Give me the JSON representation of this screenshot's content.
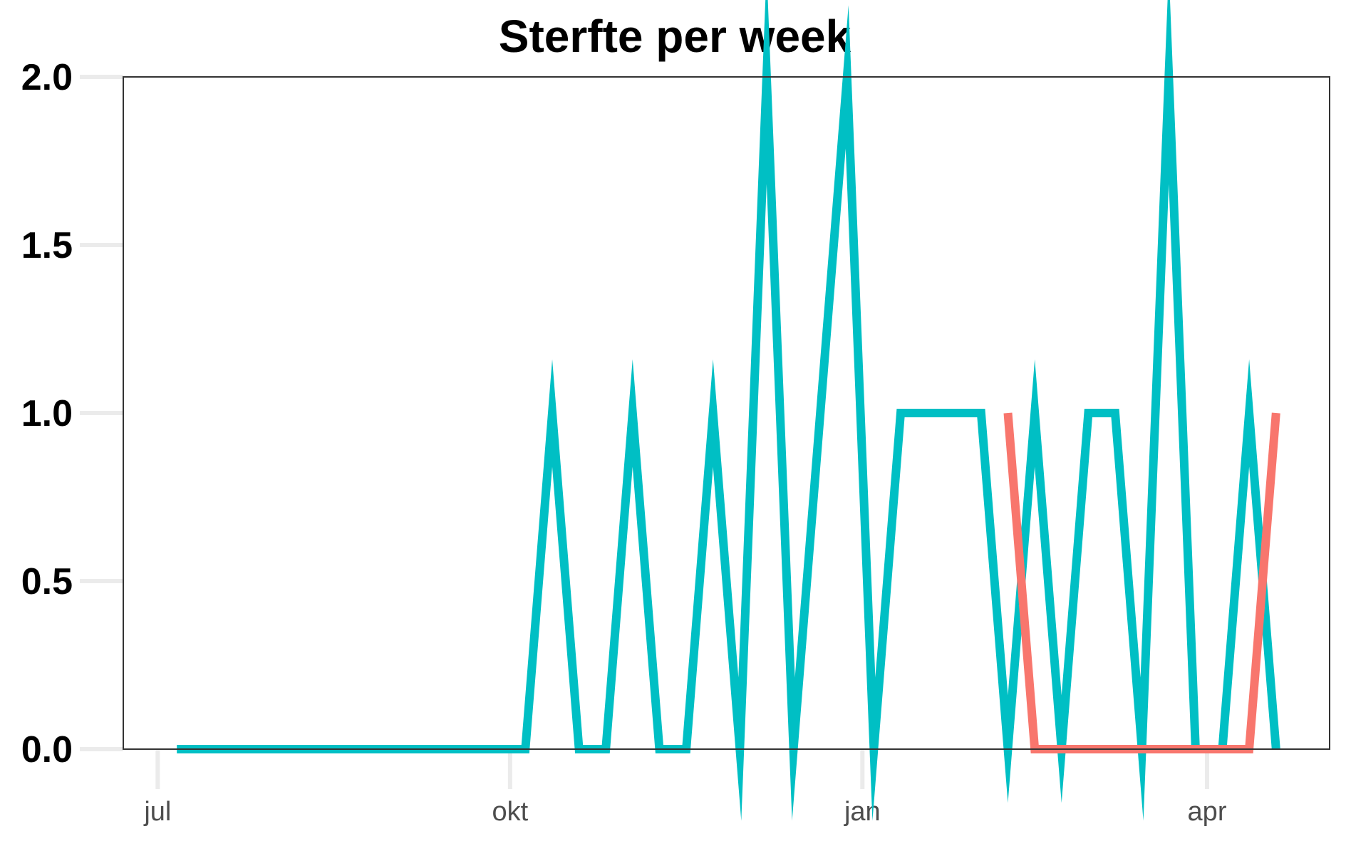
{
  "chart_data": {
    "type": "line",
    "title": "Sterfte per week",
    "xlabel": "",
    "ylabel": "",
    "ylim": [
      0,
      2
    ],
    "xlim": [
      "2020-06-22",
      "2021-05-03"
    ],
    "y_ticks": [
      "0.0",
      "0.5",
      "1.0",
      "1.5",
      "2.0"
    ],
    "x_ticks": [
      {
        "label": "jul",
        "date": "2020-07-01"
      },
      {
        "label": "okt",
        "date": "2020-10-01"
      },
      {
        "label": "jan",
        "date": "2021-01-01"
      },
      {
        "label": "apr",
        "date": "2021-04-01"
      }
    ],
    "grid": false,
    "legend": "none",
    "series": [
      {
        "color": "#00BFC4",
        "points": [
          [
            "2020-07-06",
            0
          ],
          [
            "2020-07-13",
            0
          ],
          [
            "2020-07-20",
            0
          ],
          [
            "2020-07-27",
            0
          ],
          [
            "2020-08-03",
            0
          ],
          [
            "2020-08-10",
            0
          ],
          [
            "2020-08-17",
            0
          ],
          [
            "2020-08-24",
            0
          ],
          [
            "2020-08-31",
            0
          ],
          [
            "2020-09-07",
            0
          ],
          [
            "2020-09-14",
            0
          ],
          [
            "2020-09-21",
            0
          ],
          [
            "2020-09-28",
            0
          ],
          [
            "2020-10-05",
            0
          ],
          [
            "2020-10-12",
            1
          ],
          [
            "2020-10-19",
            0
          ],
          [
            "2020-10-26",
            0
          ],
          [
            "2020-11-02",
            1
          ],
          [
            "2020-11-09",
            0
          ],
          [
            "2020-11-16",
            0
          ],
          [
            "2020-11-23",
            1
          ],
          [
            "2020-11-30",
            0
          ],
          [
            "2020-12-07",
            2
          ],
          [
            "2020-12-14",
            0
          ],
          [
            "2020-12-21",
            1
          ],
          [
            "2020-12-28",
            2
          ],
          [
            "2021-01-04",
            0
          ],
          [
            "2021-01-11",
            1
          ],
          [
            "2021-01-18",
            1
          ],
          [
            "2021-01-25",
            1
          ],
          [
            "2021-02-01",
            1
          ],
          [
            "2021-02-08",
            0
          ],
          [
            "2021-02-15",
            1
          ],
          [
            "2021-02-22",
            0
          ],
          [
            "2021-03-01",
            1
          ],
          [
            "2021-03-08",
            1
          ],
          [
            "2021-03-15",
            0
          ],
          [
            "2021-03-22",
            2
          ],
          [
            "2021-03-29",
            0
          ],
          [
            "2021-04-05",
            0
          ],
          [
            "2021-04-12",
            1
          ],
          [
            "2021-04-19",
            0
          ]
        ]
      },
      {
        "color": "#F8766D",
        "points": [
          [
            "2021-02-08",
            1
          ],
          [
            "2021-02-15",
            0
          ],
          [
            "2021-02-22",
            0
          ],
          [
            "2021-03-01",
            0
          ],
          [
            "2021-03-08",
            0
          ],
          [
            "2021-03-15",
            0
          ],
          [
            "2021-03-22",
            0
          ],
          [
            "2021-03-29",
            0
          ],
          [
            "2021-04-05",
            0
          ],
          [
            "2021-04-12",
            0
          ],
          [
            "2021-04-19",
            1
          ]
        ]
      }
    ]
  }
}
